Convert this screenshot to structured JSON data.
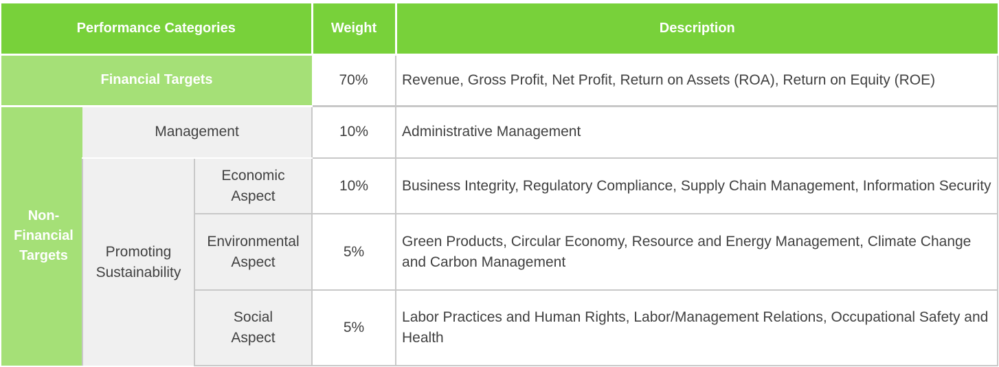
{
  "header": {
    "categories": "Performance Categories",
    "weight": "Weight",
    "description": "Description"
  },
  "rows": {
    "financial": {
      "label": "Financial Targets",
      "weight": "70%",
      "description": "Revenue, Gross Profit, Net Profit, Return on Assets (ROA), Return on Equity (ROE)"
    },
    "non_financial": {
      "label": "Non-Financial Targets"
    },
    "management": {
      "label": "Management",
      "weight": "10%",
      "description": "Administrative Management"
    },
    "promoting": {
      "label": "Promoting Sustainability"
    },
    "economic": {
      "label": "Economic Aspect",
      "weight": "10%",
      "description": "Business Integrity, Regulatory Compliance, Supply Chain Management, Information Security"
    },
    "environmental": {
      "label": "Environmental Aspect",
      "weight": "5%",
      "description": "Green Products, Circular Economy, Resource and Energy Management, Climate Change and Carbon Management"
    },
    "social": {
      "label": "Social Aspect",
      "weight": "5%",
      "description": "Labor Practices and Human Rights, Labor/Management Relations, Occupational Safety and Health"
    }
  },
  "colors": {
    "header_green": "#78d13a",
    "light_green": "#a5e077",
    "grey_cell": "#f0f0f0",
    "text": "#404040"
  }
}
